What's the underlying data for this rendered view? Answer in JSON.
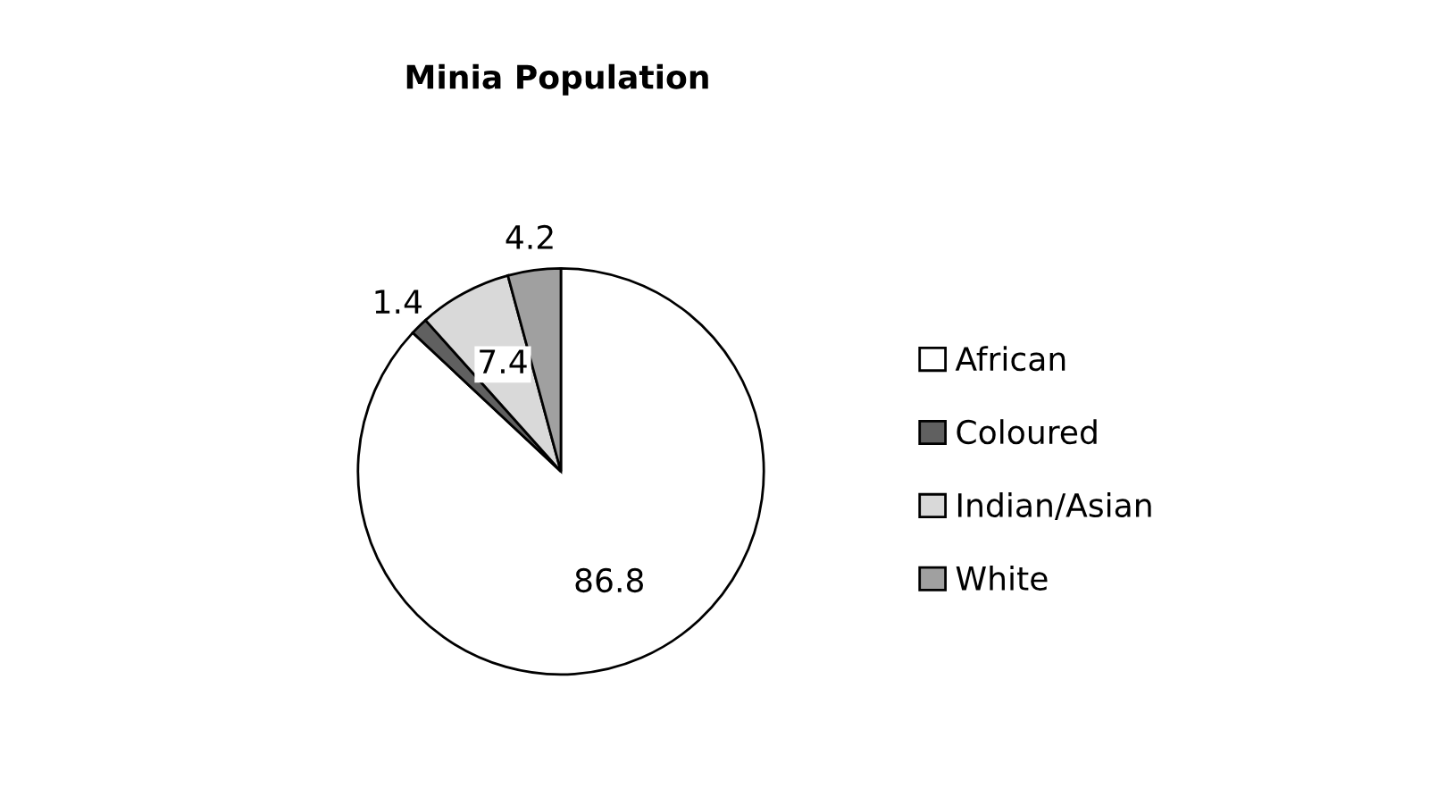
{
  "chart_data": {
    "type": "pie",
    "title": "Minia Population",
    "categories": [
      "African",
      "Coloured",
      "Indian/Asian",
      "White"
    ],
    "values": [
      86.8,
      1.4,
      7.4,
      4.2
    ],
    "colors": [
      "#ffffff",
      "#606060",
      "#d9d9d9",
      "#a0a0a0"
    ],
    "data_labels": true,
    "legend": "right"
  }
}
